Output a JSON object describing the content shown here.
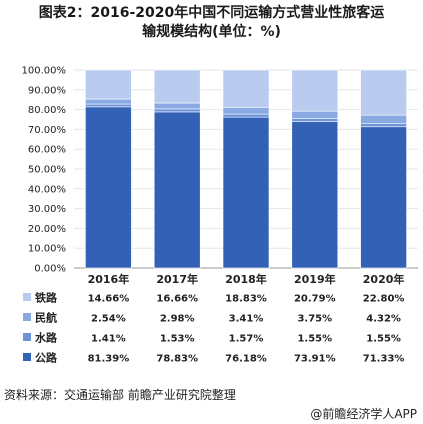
{
  "title_line1": "图表2：2016-2020年中国不同运输方式营业性旅客运",
  "title_line2": "输规模结构(单位：%)",
  "source": "资料来源：交通运输部 前瞻产业研究院整理",
  "brand": "@前瞻经济学人APP",
  "colors": {
    "公路": "#3361b5",
    "水路": "#6d93d8",
    "民航": "#8aa9e3",
    "铁路": "#b9cbee"
  },
  "chart_data": {
    "type": "bar",
    "stacked": true,
    "categories": [
      "2016年",
      "2017年",
      "2018年",
      "2019年",
      "2020年"
    ],
    "series": [
      {
        "name": "公路",
        "values": [
          81.39,
          78.83,
          76.18,
          73.91,
          71.33
        ]
      },
      {
        "name": "水路",
        "values": [
          1.41,
          1.53,
          1.57,
          1.55,
          1.55
        ]
      },
      {
        "name": "民航",
        "values": [
          2.54,
          2.98,
          3.41,
          3.75,
          4.32
        ]
      },
      {
        "name": "铁路",
        "values": [
          14.66,
          16.66,
          18.83,
          20.79,
          22.8
        ]
      }
    ],
    "table_rows": [
      {
        "name": "铁路",
        "labels": [
          "14.66%",
          "16.66%",
          "18.83%",
          "20.79%",
          "22.80%"
        ]
      },
      {
        "name": "民航",
        "labels": [
          "2.54%",
          "2.98%",
          "3.41%",
          "3.75%",
          "4.32%"
        ]
      },
      {
        "name": "水路",
        "labels": [
          "1.41%",
          "1.53%",
          "1.57%",
          "1.55%",
          "1.55%"
        ]
      },
      {
        "name": "公路",
        "labels": [
          "81.39%",
          "78.83%",
          "76.18%",
          "73.91%",
          "71.33%"
        ]
      }
    ],
    "yticks": [
      "0.00%",
      "10.00%",
      "20.00%",
      "30.00%",
      "40.00%",
      "50.00%",
      "60.00%",
      "70.00%",
      "80.00%",
      "90.00%",
      "100.00%"
    ],
    "ylim": [
      0,
      100
    ],
    "legend": "table-bottom"
  }
}
